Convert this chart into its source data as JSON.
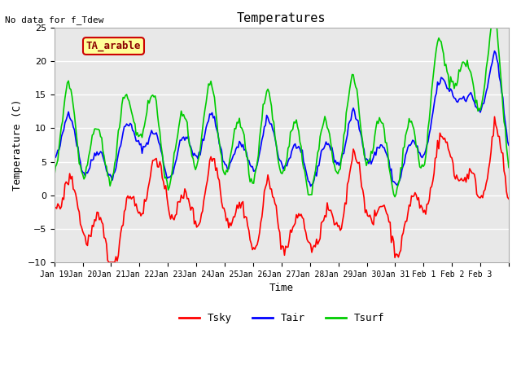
{
  "title": "Temperatures",
  "xlabel": "Time",
  "ylabel": "Temperature (C)",
  "top_left_text": "No data for f_Tdew",
  "annotation_box": "TA_arable",
  "ylim": [
    -10,
    25
  ],
  "yticks": [
    -10,
    -5,
    0,
    5,
    10,
    15,
    20,
    25
  ],
  "xtick_positions": [
    0,
    1,
    2,
    3,
    4,
    5,
    6,
    7,
    8,
    9,
    10,
    11,
    12,
    13,
    14,
    15,
    16
  ],
  "xtick_labels": [
    "Jan 19",
    "Jan 20",
    "Jan 21",
    "Jan 22",
    "Jan 23",
    "Jan 24",
    "Jan 25",
    "Jan 26",
    "Jan 27",
    "Jan 28",
    "Jan 29",
    "Jan 30",
    "Jan 31",
    "Feb 1",
    "Feb 2",
    "Feb 3",
    ""
  ],
  "line_colors": {
    "Tsky": "#ff0000",
    "Tair": "#0000ff",
    "Tsurf": "#00cc00"
  },
  "line_widths": {
    "Tsky": 1.2,
    "Tair": 1.2,
    "Tsurf": 1.2
  },
  "plot_bg_color": "#e8e8e8",
  "grid_color": "#ffffff",
  "annotation_bg": "#ffff99",
  "annotation_border": "#cc0000"
}
